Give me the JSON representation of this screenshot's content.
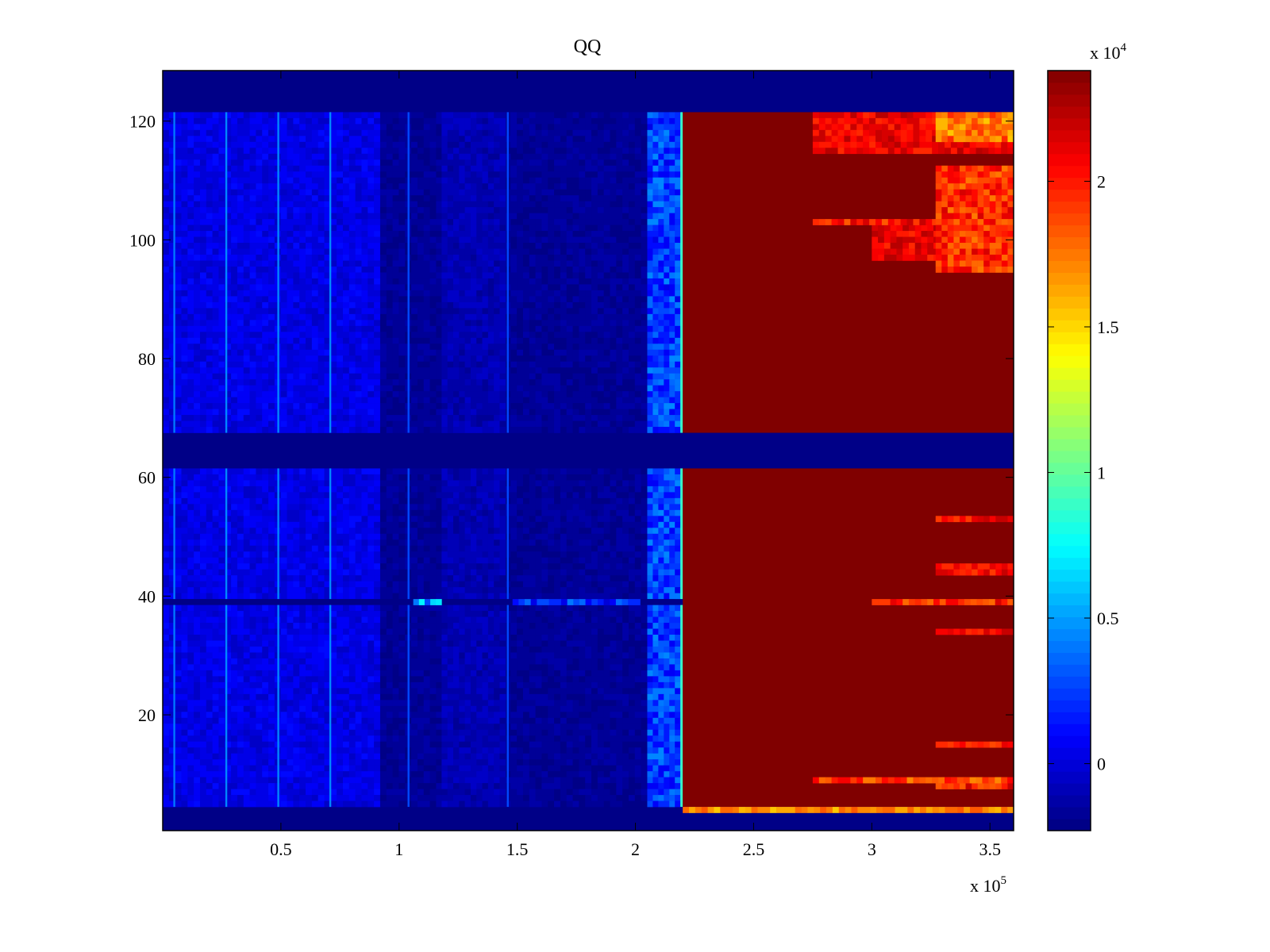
{
  "chart_data": {
    "type": "heatmap",
    "title": "QQ",
    "xlabel": "",
    "ylabel": "",
    "x_multiplier_label": "x 10",
    "x_multiplier_exp": "5",
    "c_multiplier_label": "x 10",
    "c_multiplier_exp": "4",
    "xlim": [
      0,
      3.6
    ],
    "ylim": [
      0.5,
      128.5
    ],
    "clim": [
      -0.23,
      2.38
    ],
    "colormap": "jet",
    "x_ticks": [
      0.5,
      1,
      1.5,
      2,
      2.5,
      3,
      3.5
    ],
    "x_tick_labels": [
      "0.5",
      "1",
      "1.5",
      "2",
      "2.5",
      "3",
      "3.5"
    ],
    "y_ticks": [
      20,
      40,
      60,
      80,
      100,
      120
    ],
    "y_tick_labels": [
      "20",
      "40",
      "60",
      "80",
      "100",
      "120"
    ],
    "c_ticks": [
      0,
      0.5,
      1,
      1.5,
      2
    ],
    "c_tick_labels": [
      "0",
      "0.5",
      "1",
      "1.5",
      "2"
    ],
    "units_note": "x in 1e5 units, value in 1e4 units",
    "regions": [
      {
        "x": [
          0,
          3.6
        ],
        "y": [
          0.5,
          128.5
        ],
        "v": -0.22
      },
      {
        "x": [
          0,
          0.92
        ],
        "y": [
          4.5,
          61.5
        ],
        "v": 0.03,
        "noise": 0.08
      },
      {
        "x": [
          0,
          0.92
        ],
        "y": [
          67.5,
          121.5
        ],
        "v": 0.03,
        "noise": 0.08
      },
      {
        "x": [
          0.92,
          2.05
        ],
        "y": [
          4.5,
          61.5
        ],
        "v": -0.17,
        "noise": 0.04
      },
      {
        "x": [
          0.92,
          2.05
        ],
        "y": [
          67.5,
          121.5
        ],
        "v": -0.17,
        "noise": 0.04
      },
      {
        "x": [
          1.18,
          1.45
        ],
        "y": [
          4.5,
          61.5
        ],
        "v": -0.1,
        "noise": 0.06
      },
      {
        "x": [
          1.18,
          1.45
        ],
        "y": [
          67.5,
          121.5
        ],
        "v": -0.1,
        "noise": 0.06
      },
      {
        "x": [
          2.05,
          2.19
        ],
        "y": [
          4.5,
          61.5
        ],
        "v": 0.25,
        "noise": 0.2
      },
      {
        "x": [
          2.05,
          2.19
        ],
        "y": [
          67.5,
          121.5
        ],
        "v": 0.25,
        "noise": 0.2
      },
      {
        "x": [
          2.19,
          2.2
        ],
        "y": [
          4.5,
          61.5
        ],
        "v": 0.9
      },
      {
        "x": [
          2.19,
          2.2
        ],
        "y": [
          67.5,
          121.5
        ],
        "v": 0.9
      },
      {
        "x": [
          2.2,
          3.6
        ],
        "y": [
          4.5,
          61.5
        ],
        "v": 2.38
      },
      {
        "x": [
          2.2,
          3.6
        ],
        "y": [
          67.5,
          121.5
        ],
        "v": 2.38
      },
      {
        "x": [
          0.045,
          0.053
        ],
        "y": [
          4.5,
          61.5
        ],
        "v": 0.4
      },
      {
        "x": [
          0.045,
          0.053
        ],
        "y": [
          67.5,
          121.5
        ],
        "v": 0.4
      },
      {
        "x": [
          0.265,
          0.273
        ],
        "y": [
          4.5,
          61.5
        ],
        "v": 0.45
      },
      {
        "x": [
          0.265,
          0.273
        ],
        "y": [
          67.5,
          121.5
        ],
        "v": 0.45
      },
      {
        "x": [
          0.485,
          0.493
        ],
        "y": [
          4.5,
          61.5
        ],
        "v": 0.45
      },
      {
        "x": [
          0.485,
          0.493
        ],
        "y": [
          67.5,
          121.5
        ],
        "v": 0.45
      },
      {
        "x": [
          0.705,
          0.713
        ],
        "y": [
          4.5,
          61.5
        ],
        "v": 0.45
      },
      {
        "x": [
          0.705,
          0.713
        ],
        "y": [
          67.5,
          121.5
        ],
        "v": 0.45
      },
      {
        "x": [
          1.036,
          1.044
        ],
        "y": [
          4.5,
          61.5
        ],
        "v": 0.3
      },
      {
        "x": [
          1.036,
          1.044
        ],
        "y": [
          67.5,
          121.5
        ],
        "v": 0.3
      },
      {
        "x": [
          1.456,
          1.464
        ],
        "y": [
          4.5,
          61.5
        ],
        "v": 0.3
      },
      {
        "x": [
          1.456,
          1.464
        ],
        "y": [
          67.5,
          121.5
        ],
        "v": 0.3
      },
      {
        "x": [
          2.75,
          3.6
        ],
        "y": [
          114.5,
          121.5
        ],
        "v": 2.1,
        "noise": 0.15
      },
      {
        "x": [
          3.0,
          3.6
        ],
        "y": [
          96.5,
          102.5
        ],
        "v": 2.1,
        "noise": 0.15
      },
      {
        "x": [
          2.75,
          3.6
        ],
        "y": [
          102.5,
          103.5
        ],
        "v": 2.0,
        "noise": 0.2
      },
      {
        "x": [
          3.27,
          3.6
        ],
        "y": [
          94.5,
          112.5
        ],
        "v": 1.95,
        "noise": 0.2
      },
      {
        "x": [
          3.27,
          3.6
        ],
        "y": [
          116.5,
          121.5
        ],
        "v": 1.75,
        "noise": 0.2
      },
      {
        "x": [
          3.27,
          3.6
        ],
        "y": [
          7.5,
          9.5
        ],
        "v": 2.0,
        "noise": 0.2
      },
      {
        "x": [
          2.75,
          3.6
        ],
        "y": [
          8.5,
          9.5
        ],
        "v": 1.9,
        "noise": 0.2
      },
      {
        "x": [
          3.27,
          3.6
        ],
        "y": [
          14.5,
          15.5
        ],
        "v": 2.0,
        "noise": 0.15
      },
      {
        "x": [
          3.27,
          3.6
        ],
        "y": [
          33.5,
          34.5
        ],
        "v": 2.05,
        "noise": 0.15
      },
      {
        "x": [
          3.27,
          3.6
        ],
        "y": [
          43.5,
          45.5
        ],
        "v": 2.05,
        "noise": 0.15
      },
      {
        "x": [
          3.27,
          3.6
        ],
        "y": [
          52.5,
          53.5
        ],
        "v": 2.05,
        "noise": 0.15
      },
      {
        "x": [
          0,
          2.2
        ],
        "y": [
          38.5,
          39.5
        ],
        "v": -0.2
      },
      {
        "x": [
          1.06,
          1.18
        ],
        "y": [
          38.5,
          39.5
        ],
        "v": 0.5,
        "noise": 0.25
      },
      {
        "x": [
          1.48,
          2.02
        ],
        "y": [
          38.5,
          39.5
        ],
        "v": 0.2,
        "noise": 0.2
      },
      {
        "x": [
          3.0,
          3.6
        ],
        "y": [
          38.5,
          39.5
        ],
        "v": 1.95,
        "noise": 0.2
      },
      {
        "x": [
          2.2,
          3.6
        ],
        "y": [
          3.5,
          4.5
        ],
        "v": 1.7,
        "noise": 0.15
      }
    ]
  }
}
